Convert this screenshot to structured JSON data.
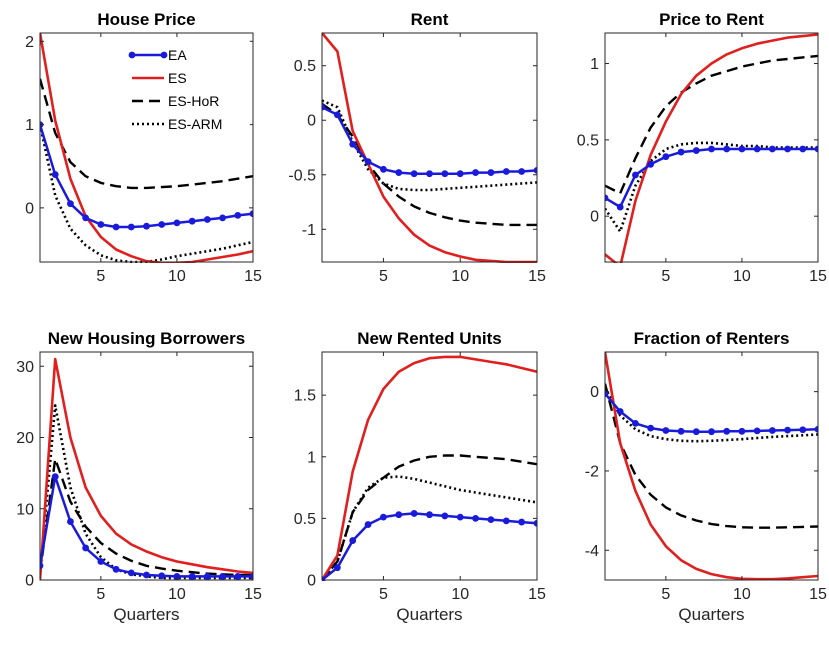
{
  "figure": {
    "legend_entries": [
      "EA",
      "ES",
      "ES-HoR",
      "ES-ARM"
    ]
  },
  "style": {
    "series_colors": {
      "EA": "#1a1adb",
      "ES": "#e01f1f",
      "ES-HoR": "#000000",
      "ES-ARM": "#000000"
    },
    "series_styles": {
      "EA": "solid-with-dot-markers",
      "ES": "solid",
      "ES-HoR": "dashed",
      "ES-ARM": "dotted"
    }
  },
  "chart_data": [
    {
      "type": "line",
      "title": "House Price",
      "xlabel": "",
      "xlim": [
        1,
        15
      ],
      "ylim": [
        -0.65,
        2.1
      ],
      "xticks": [
        "5",
        "10",
        "15"
      ],
      "yticks": [
        "0",
        "1",
        "2"
      ],
      "legend_position": "top-right",
      "x": [
        1,
        2,
        3,
        4,
        5,
        6,
        7,
        8,
        9,
        10,
        11,
        12,
        13,
        14,
        15
      ],
      "series": [
        {
          "name": "EA",
          "values": [
            1.0,
            0.4,
            0.05,
            -0.12,
            -0.2,
            -0.23,
            -0.23,
            -0.22,
            -0.2,
            -0.18,
            -0.16,
            -0.14,
            -0.12,
            -0.09,
            -0.07
          ]
        },
        {
          "name": "ES",
          "values": [
            2.1,
            1.05,
            0.35,
            -0.1,
            -0.35,
            -0.5,
            -0.58,
            -0.64,
            -0.66,
            -0.66,
            -0.65,
            -0.62,
            -0.59,
            -0.56,
            -0.52
          ]
        },
        {
          "name": "ES-HoR",
          "values": [
            1.55,
            0.9,
            0.55,
            0.38,
            0.3,
            0.26,
            0.24,
            0.24,
            0.25,
            0.26,
            0.28,
            0.3,
            0.32,
            0.35,
            0.38
          ]
        },
        {
          "name": "ES-ARM",
          "values": [
            1.0,
            0.15,
            -0.25,
            -0.45,
            -0.57,
            -0.63,
            -0.65,
            -0.65,
            -0.62,
            -0.58,
            -0.55,
            -0.52,
            -0.49,
            -0.45,
            -0.41
          ]
        }
      ]
    },
    {
      "type": "line",
      "title": "Rent",
      "xlabel": "",
      "xlim": [
        1,
        15
      ],
      "ylim": [
        -1.3,
        0.8
      ],
      "xticks": [
        "5",
        "10",
        "15"
      ],
      "yticks": [
        "-1",
        "-0.5",
        "0",
        "0.5"
      ],
      "x": [
        1,
        2,
        3,
        4,
        5,
        6,
        7,
        8,
        9,
        10,
        11,
        12,
        13,
        14,
        15
      ],
      "series": [
        {
          "name": "EA",
          "values": [
            0.12,
            0.05,
            -0.22,
            -0.38,
            -0.45,
            -0.48,
            -0.49,
            -0.49,
            -0.49,
            -0.49,
            -0.48,
            -0.48,
            -0.47,
            -0.47,
            -0.46
          ]
        },
        {
          "name": "ES",
          "values": [
            0.8,
            0.63,
            -0.1,
            -0.4,
            -0.7,
            -0.9,
            -1.05,
            -1.15,
            -1.21,
            -1.25,
            -1.28,
            -1.29,
            -1.3,
            -1.3,
            -1.3
          ]
        },
        {
          "name": "ES-HoR",
          "values": [
            0.15,
            0.05,
            -0.15,
            -0.4,
            -0.58,
            -0.7,
            -0.79,
            -0.85,
            -0.89,
            -0.92,
            -0.94,
            -0.95,
            -0.96,
            -0.96,
            -0.96
          ]
        },
        {
          "name": "ES-ARM",
          "values": [
            0.18,
            0.12,
            -0.2,
            -0.45,
            -0.58,
            -0.63,
            -0.64,
            -0.64,
            -0.63,
            -0.62,
            -0.61,
            -0.6,
            -0.59,
            -0.58,
            -0.57
          ]
        }
      ]
    },
    {
      "type": "line",
      "title": "Price to Rent",
      "xlabel": "",
      "xlim": [
        1,
        15
      ],
      "ylim": [
        -0.3,
        1.2
      ],
      "xticks": [
        "5",
        "10",
        "15"
      ],
      "yticks": [
        "0",
        "0.5",
        "1"
      ],
      "x": [
        1,
        2,
        3,
        4,
        5,
        6,
        7,
        8,
        9,
        10,
        11,
        12,
        13,
        14,
        15
      ],
      "series": [
        {
          "name": "EA",
          "values": [
            0.12,
            0.06,
            0.27,
            0.34,
            0.39,
            0.42,
            0.43,
            0.44,
            0.44,
            0.44,
            0.44,
            0.44,
            0.44,
            0.44,
            0.44
          ]
        },
        {
          "name": "ES",
          "values": [
            -0.25,
            -0.33,
            0.1,
            0.4,
            0.62,
            0.8,
            0.92,
            1.0,
            1.06,
            1.1,
            1.13,
            1.15,
            1.17,
            1.18,
            1.19
          ]
        },
        {
          "name": "ES-HoR",
          "values": [
            0.2,
            0.15,
            0.38,
            0.58,
            0.72,
            0.81,
            0.87,
            0.92,
            0.95,
            0.98,
            1.0,
            1.02,
            1.03,
            1.04,
            1.05
          ]
        },
        {
          "name": "ES-ARM",
          "values": [
            0.05,
            -0.1,
            0.2,
            0.36,
            0.44,
            0.47,
            0.48,
            0.48,
            0.47,
            0.46,
            0.46,
            0.45,
            0.45,
            0.45,
            0.45
          ]
        }
      ]
    },
    {
      "type": "line",
      "title": "New Housing Borrowers",
      "xlabel": "Quarters",
      "xlim": [
        1,
        15
      ],
      "ylim": [
        0,
        32
      ],
      "xticks": [
        "5",
        "10",
        "15"
      ],
      "yticks": [
        "0",
        "10",
        "20",
        "30"
      ],
      "x": [
        1,
        2,
        3,
        4,
        5,
        6,
        7,
        8,
        9,
        10,
        11,
        12,
        13,
        14,
        15
      ],
      "series": [
        {
          "name": "EA",
          "values": [
            2.0,
            14.5,
            8.2,
            4.5,
            2.6,
            1.5,
            1.0,
            0.7,
            0.6,
            0.5,
            0.5,
            0.5,
            0.5,
            0.5,
            0.5
          ]
        },
        {
          "name": "ES",
          "values": [
            0.0,
            31.0,
            20.0,
            13.0,
            9.0,
            6.5,
            5.0,
            4.0,
            3.2,
            2.6,
            2.2,
            1.8,
            1.5,
            1.2,
            1.0
          ]
        },
        {
          "name": "ES-HoR",
          "values": [
            1.0,
            17.0,
            11.0,
            7.5,
            5.2,
            3.7,
            2.7,
            2.0,
            1.6,
            1.3,
            1.1,
            0.9,
            0.8,
            0.7,
            0.7
          ]
        },
        {
          "name": "ES-ARM",
          "values": [
            0.5,
            24.5,
            13.0,
            6.5,
            3.2,
            1.5,
            0.8,
            0.5,
            0.3,
            0.3,
            0.3,
            0.3,
            0.3,
            0.3,
            0.3
          ]
        }
      ]
    },
    {
      "type": "line",
      "title": "New Rented Units",
      "xlabel": "Quarters",
      "xlim": [
        1,
        15
      ],
      "ylim": [
        0,
        1.85
      ],
      "xticks": [
        "5",
        "10",
        "15"
      ],
      "yticks": [
        "0",
        "0.5",
        "1",
        "1.5"
      ],
      "x": [
        1,
        2,
        3,
        4,
        5,
        6,
        7,
        8,
        9,
        10,
        11,
        12,
        13,
        14,
        15
      ],
      "series": [
        {
          "name": "EA",
          "values": [
            0.0,
            0.1,
            0.32,
            0.45,
            0.51,
            0.53,
            0.54,
            0.53,
            0.52,
            0.51,
            0.5,
            0.49,
            0.48,
            0.47,
            0.46
          ]
        },
        {
          "name": "ES",
          "values": [
            0.0,
            0.2,
            0.88,
            1.3,
            1.55,
            1.69,
            1.76,
            1.8,
            1.81,
            1.81,
            1.79,
            1.77,
            1.75,
            1.72,
            1.69
          ]
        },
        {
          "name": "ES-HoR",
          "values": [
            0.0,
            0.15,
            0.55,
            0.73,
            0.83,
            0.92,
            0.97,
            1.0,
            1.01,
            1.01,
            1.0,
            0.99,
            0.98,
            0.96,
            0.94
          ]
        },
        {
          "name": "ES-ARM",
          "values": [
            0.0,
            0.15,
            0.55,
            0.75,
            0.83,
            0.84,
            0.82,
            0.79,
            0.76,
            0.73,
            0.71,
            0.69,
            0.67,
            0.65,
            0.63
          ]
        }
      ]
    },
    {
      "type": "line",
      "title": "Fraction of Renters",
      "xlabel": "Quarters",
      "xlim": [
        1,
        15
      ],
      "ylim": [
        -4.75,
        1.0
      ],
      "xticks": [
        "5",
        "10",
        "15"
      ],
      "yticks": [
        "-4",
        "-2",
        "0"
      ],
      "x": [
        1,
        2,
        3,
        4,
        5,
        6,
        7,
        8,
        9,
        10,
        11,
        12,
        13,
        14,
        15
      ],
      "series": [
        {
          "name": "EA",
          "values": [
            -0.05,
            -0.5,
            -0.8,
            -0.92,
            -0.98,
            -1.0,
            -1.01,
            -1.01,
            -1.0,
            -1.0,
            -0.99,
            -0.98,
            -0.97,
            -0.96,
            -0.95
          ]
        },
        {
          "name": "ES",
          "values": [
            1.0,
            -1.3,
            -2.5,
            -3.35,
            -3.9,
            -4.25,
            -4.47,
            -4.6,
            -4.68,
            -4.72,
            -4.73,
            -4.73,
            -4.71,
            -4.68,
            -4.65
          ]
        },
        {
          "name": "ES-HoR",
          "values": [
            0.2,
            -1.3,
            -2.1,
            -2.6,
            -2.92,
            -3.12,
            -3.25,
            -3.34,
            -3.39,
            -3.42,
            -3.43,
            -3.43,
            -3.42,
            -3.41,
            -3.4
          ]
        },
        {
          "name": "ES-ARM",
          "values": [
            0.1,
            -0.6,
            -0.95,
            -1.12,
            -1.2,
            -1.24,
            -1.25,
            -1.24,
            -1.22,
            -1.2,
            -1.17,
            -1.14,
            -1.12,
            -1.1,
            -1.08
          ]
        }
      ]
    }
  ]
}
